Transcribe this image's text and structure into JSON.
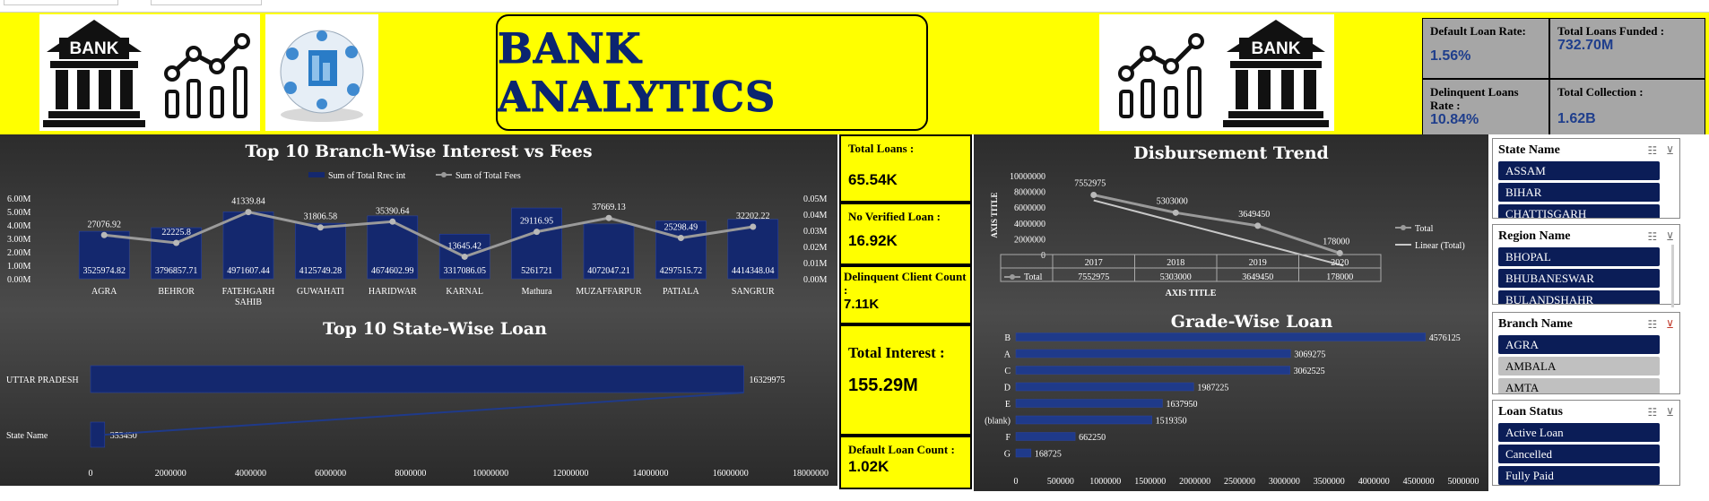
{
  "header": {
    "title": "BANK ANALYTICS",
    "bank_label_left": "BANK",
    "bank_label_right": "BANK"
  },
  "kpis_top": {
    "default_rate": {
      "label": "Default Loan Rate:",
      "value": "1.56%"
    },
    "total_funded": {
      "label": "Total Loans Funded :",
      "value": "732.70M"
    },
    "delinquent_rate": {
      "label": "Delinquent Loans Rate :",
      "value": "10.84%"
    },
    "total_collection": {
      "label": "Total Collection :",
      "value": "1.62B"
    }
  },
  "kpis_mid": {
    "total_loans": {
      "label": "Total Loans :",
      "value": "65.54K"
    },
    "no_verified": {
      "label": "No Verified Loan :",
      "value": "16.92K"
    },
    "delinquent_client": {
      "label": "Delinquent Client Count :",
      "value": "7.11K"
    },
    "total_interest": {
      "label": "Total Interest :",
      "value": "155.29M"
    },
    "default_count": {
      "label": "Default Loan Count :",
      "value": "1.02K"
    }
  },
  "charts": {
    "branch": {
      "title": "Top 10 Branch-Wise Interest vs Fees"
    },
    "state": {
      "title": "Top 10 State-Wise Loan"
    },
    "disb": {
      "title": "Disbursement Trend"
    },
    "grade": {
      "title": "Grade-Wise Loan"
    }
  },
  "chart_data": [
    {
      "type": "bar",
      "title": "Top 10 Branch-Wise Interest vs Fees",
      "legend": [
        "Sum of Total Rrec int",
        "Sum of Total Fees"
      ],
      "categories": [
        "AGRA",
        "BEHROR",
        "FATEHGARH SAHIB",
        "GUWAHATI",
        "HARIDWAR",
        "KARNAL",
        "Mathura",
        "MUZAFFARPUR",
        "PATIALA",
        "SANGRUR"
      ],
      "series": [
        {
          "name": "Sum of Total Rrec int",
          "kind": "bar",
          "values": [
            3525974.82,
            3796857.71,
            4971607.44,
            4125749.28,
            4674602.99,
            3317086.05,
            5261721,
            4072047.21,
            4297515.72,
            4414348.04
          ],
          "labels": [
            "3525974.82",
            "3796857.71",
            "4971607.44",
            "4125749.28",
            "4674602.99",
            "3317086.05",
            "5261721",
            "4072047.21",
            "4297515.72",
            "4414348.04"
          ]
        },
        {
          "name": "Sum of Total Fees",
          "kind": "line",
          "values": [
            27076.92,
            22225.8,
            41339.84,
            31806.58,
            35390.64,
            13645.42,
            29116.95,
            37669.13,
            25298.49,
            32202.22
          ],
          "labels": [
            "27076.92",
            "22225.8",
            "41339.84",
            "31806.58",
            "35390.64",
            "13645.42",
            "29116.95",
            "37669.13",
            "25298.49",
            "32202.22"
          ]
        }
      ],
      "y_ticks": [
        "0.00M",
        "1.00M",
        "2.00M",
        "3.00M",
        "4.00M",
        "5.00M",
        "6.00M"
      ],
      "y2_ticks": [
        "0.00M",
        "0.01M",
        "0.02M",
        "0.03M",
        "0.04M",
        "0.05M"
      ],
      "ylim": [
        0,
        6000000
      ],
      "y2lim": [
        0,
        50000
      ]
    },
    {
      "type": "bar",
      "title": "Top 10 State-Wise Loan",
      "categories": [
        "UTTAR PRADESH",
        "State Name"
      ],
      "values": [
        16329975,
        353450
      ],
      "labels": [
        "16329975",
        "353450"
      ],
      "x_ticks": [
        "0",
        "2000000",
        "4000000",
        "6000000",
        "8000000",
        "10000000",
        "12000000",
        "14000000",
        "16000000",
        "18000000"
      ],
      "xlim": [
        0,
        18000000
      ]
    },
    {
      "type": "line",
      "title": "Disbursement Trend",
      "x": [
        "2017",
        "2018",
        "2019",
        "2020"
      ],
      "series": [
        {
          "name": "Total",
          "values": [
            7552975,
            5303000,
            3649450,
            178000
          ]
        }
      ],
      "labels": [
        "7552975",
        "5303000",
        "3649450",
        "178000"
      ],
      "legend": [
        "Total",
        "Linear (Total)"
      ],
      "y_ticks": [
        "0",
        "2000000",
        "4000000",
        "6000000",
        "8000000",
        "10000000"
      ],
      "ylim": [
        0,
        10000000
      ],
      "xlabel": "AXIS TITLE",
      "ylabel": "AXIS TITLE",
      "table_row_label": "Total"
    },
    {
      "type": "bar",
      "title": "Grade-Wise Loan",
      "categories": [
        "B",
        "A",
        "C",
        "D",
        "E",
        "(blank)",
        "F",
        "G"
      ],
      "values": [
        4576125,
        3069275,
        3062525,
        1987225,
        1637950,
        1519350,
        662250,
        168725
      ],
      "labels": [
        "4576125",
        "3069275",
        "3062525",
        "1987225",
        "1637950",
        "1519350",
        "662250",
        "168725"
      ],
      "x_ticks": [
        "0",
        "500000",
        "1000000",
        "1500000",
        "2000000",
        "2500000",
        "3000000",
        "3500000",
        "4000000",
        "4500000",
        "5000000"
      ],
      "xlim": [
        0,
        5000000
      ]
    }
  ],
  "slicers": {
    "state": {
      "title": "State Name",
      "items": [
        "ASSAM",
        "BIHAR",
        "CHATTISGARH"
      ]
    },
    "region": {
      "title": "Region Name",
      "items": [
        "BHOPAL",
        "BHUBANESWAR",
        "BULANDSHAHR"
      ]
    },
    "branch": {
      "title": "Branch Name",
      "items": [
        "AGRA",
        "AMBALA",
        "AMTA"
      ]
    },
    "loan_status": {
      "title": "Loan Status",
      "items": [
        "Active Loan",
        "Cancelled",
        "Fully Paid"
      ]
    }
  },
  "icons": {
    "multi_select": "multi-select-icon",
    "clear_filter": "clear-filter-icon"
  },
  "colors": {
    "header_bg": "#ffff00",
    "title_text": "#0b2570",
    "bar": "#14286e",
    "line": "#9a9a9a",
    "slicer_selected": "#0b1d57"
  }
}
